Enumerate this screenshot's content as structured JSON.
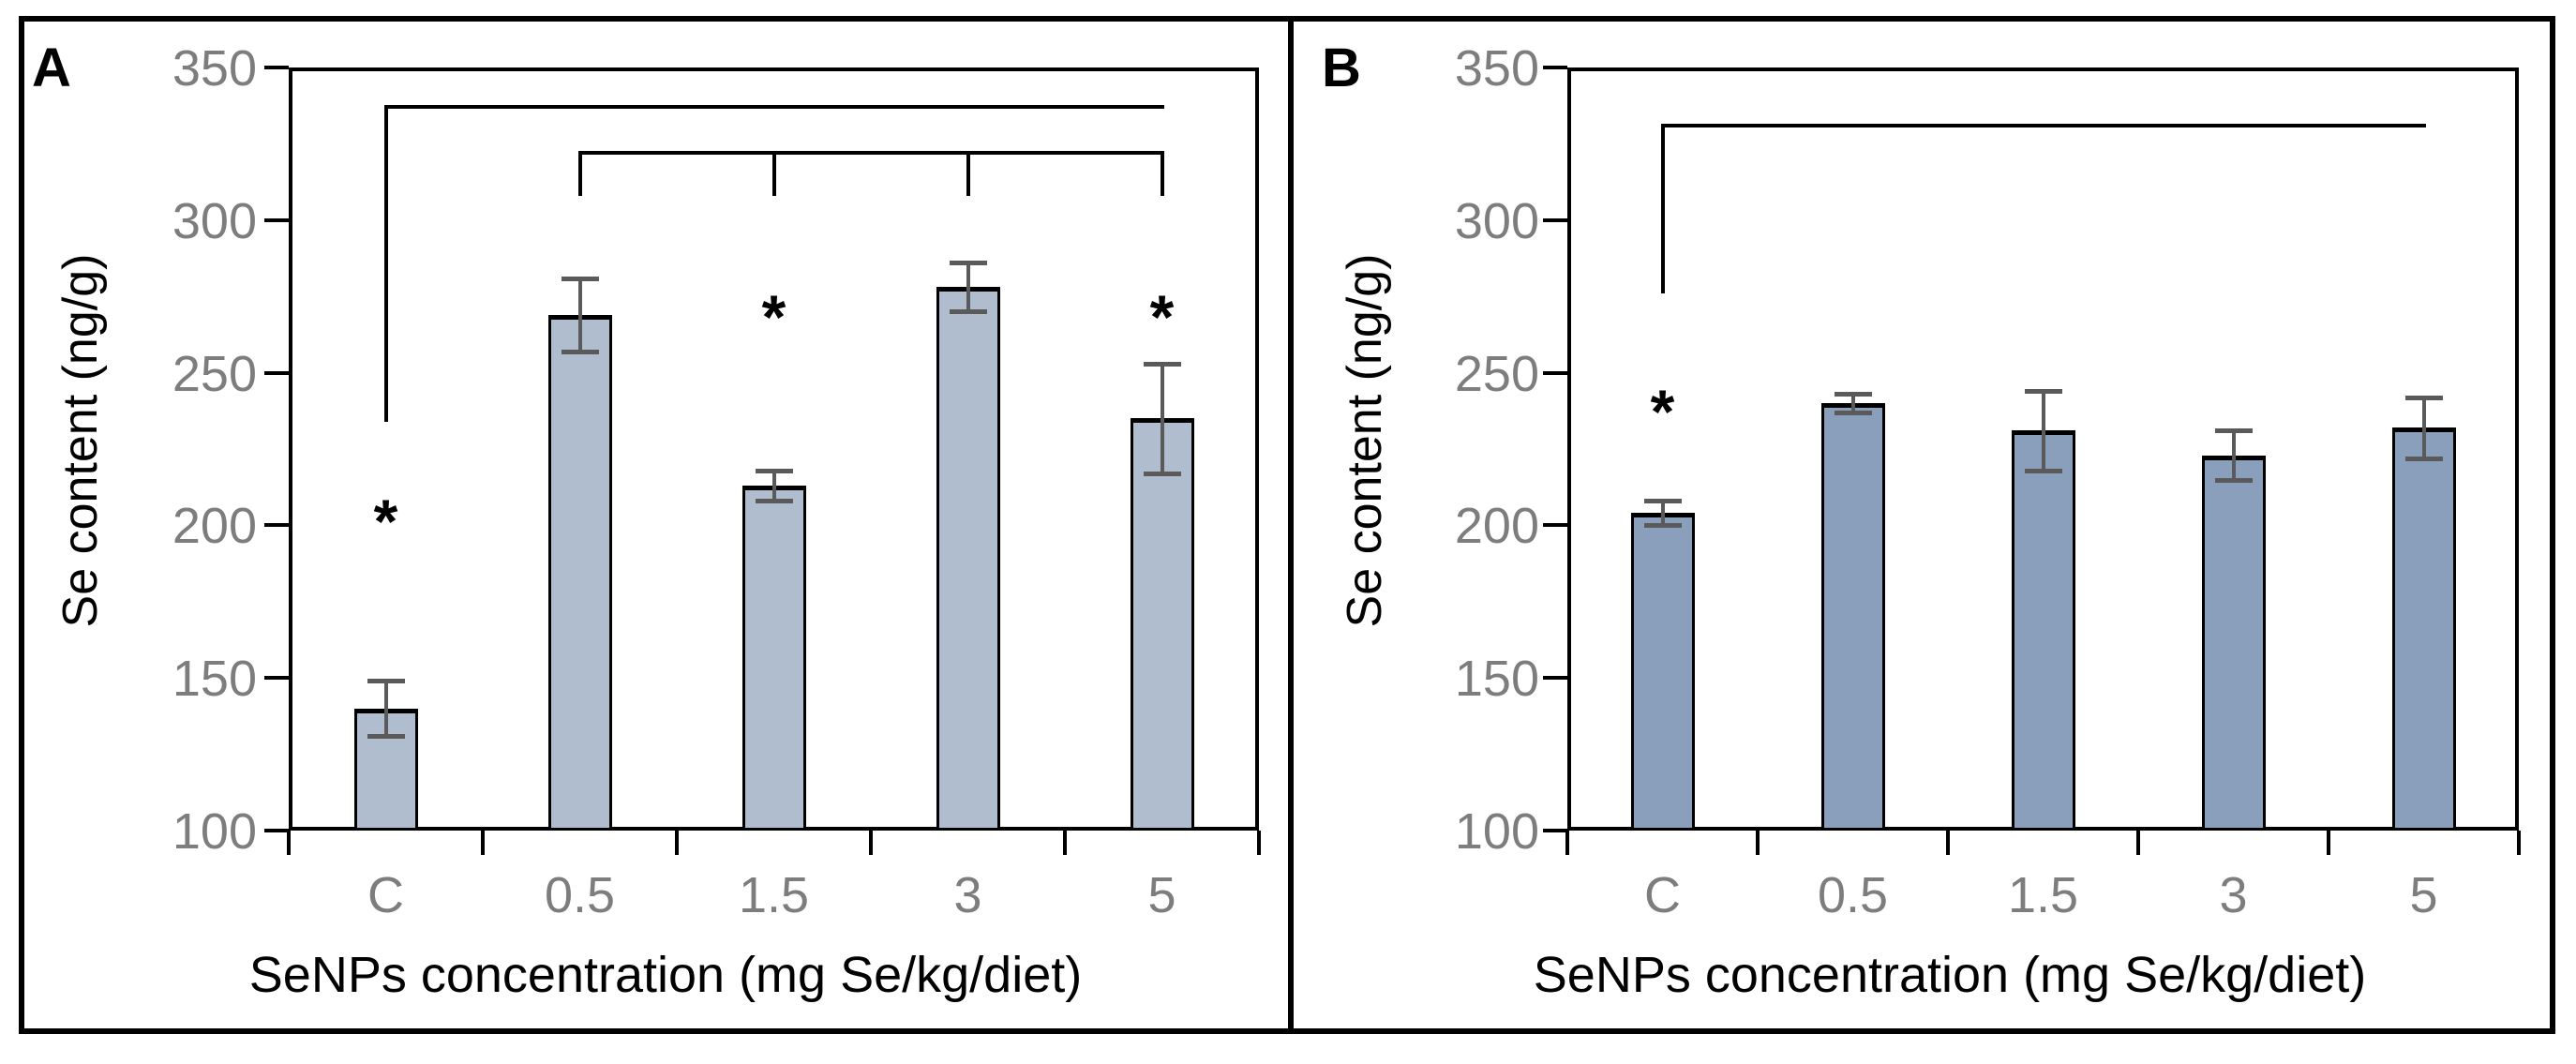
{
  "figure_letters": {
    "panel_a": "A",
    "panel_b": "B"
  },
  "chart_data": [
    {
      "type": "bar",
      "panel_letter": "A",
      "categories": [
        "C",
        "0.5",
        "1.5",
        "3",
        "5"
      ],
      "values": [
        140,
        269,
        213,
        278,
        235
      ],
      "errors": [
        9,
        12,
        5,
        8,
        18
      ],
      "xlabel": "SeNPs concentration (mg Se/kg/diet)",
      "ylabel": "Se content (ng/g)",
      "ylim": [
        100,
        350
      ],
      "yticks": [
        350,
        300,
        250,
        200,
        150,
        100
      ],
      "grid": "off",
      "legend": "none",
      "bar_color": "#b0bdcf",
      "bar_border_color": "#000000",
      "error_color": "#5a5a5a",
      "tick_label_color": "#7d7d7d",
      "sig_symbol": "*",
      "significance_stars": [
        {
          "category": "C",
          "y": 205
        },
        {
          "category": "1.5",
          "y": 272
        },
        {
          "category": "5",
          "y": 272
        }
      ],
      "brackets": [
        {
          "from": "C",
          "to": "5",
          "y": 337,
          "left_drop_to": 234
        },
        {
          "from": "0.5",
          "to": "5",
          "y": 322,
          "left_drop_to": 308,
          "right_drop_to": 308,
          "tick_categories": [
            "1.5",
            "3"
          ],
          "tick_drop_to": 308
        }
      ]
    },
    {
      "type": "bar",
      "panel_letter": "B",
      "categories": [
        "C",
        "0.5",
        "1.5",
        "3",
        "5"
      ],
      "values": [
        204,
        240,
        231,
        223,
        232
      ],
      "errors": [
        4,
        3,
        13,
        8,
        10
      ],
      "xlabel": "SeNPs concentration (mg Se/kg/diet)",
      "ylabel": "Se content (ng/g)",
      "ylim": [
        100,
        350
      ],
      "yticks": [
        350,
        300,
        250,
        200,
        150,
        100
      ],
      "grid": "off",
      "legend": "none",
      "bar_color": "#8a9fbc",
      "bar_border_color": "#000000",
      "error_color": "#5a5a5a",
      "tick_label_color": "#7d7d7d",
      "sig_symbol": "*",
      "significance_stars": [
        {
          "category": "C",
          "y": 241
        }
      ],
      "brackets": [
        {
          "from": "C",
          "to": "5",
          "y": 331,
          "left_drop_to": 276
        }
      ]
    }
  ]
}
